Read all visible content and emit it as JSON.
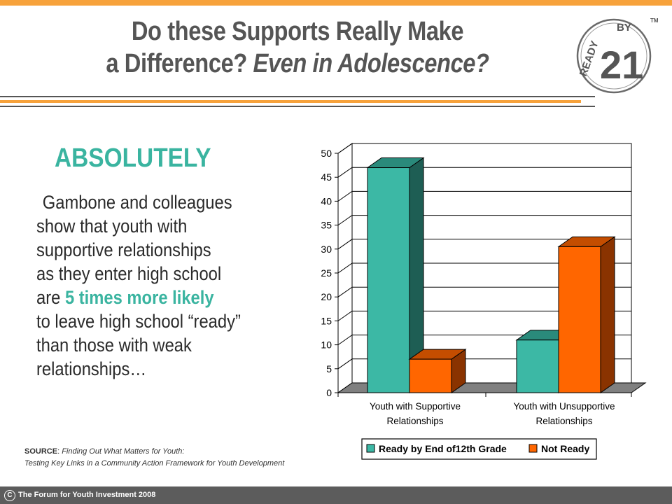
{
  "slide": {
    "title_line1": "Do these Supports Really Make",
    "title_line2_plain": "a Difference? ",
    "title_line2_italic": "Even in Adolescence?",
    "headline": "ABSOLUTELY",
    "body": {
      "line1": "Gambone and colleagues",
      "line2": "show that youth with",
      "line3": "supportive relationships",
      "line4": "as they enter high school",
      "line5_prefix": "are ",
      "line5_highlight": "5 times more likely",
      "line6": "to leave high school “ready”",
      "line7": "than those with weak",
      "line8": "relationships…"
    },
    "source": {
      "label": "SOURCE",
      "separator": ": ",
      "line1": "Finding Out What Matters for Youth:",
      "line2": "Testing Key Links in a Community Action Framework for Youth Development"
    },
    "footer": {
      "copyright_symbol": "C",
      "text": "The Forum for Youth Investment 2008"
    },
    "logo": {
      "text_ready": "READY",
      "text_by": "BY",
      "number": "21",
      "trademark": "TM"
    },
    "colors": {
      "accent_orange": "#f7a23b",
      "accent_teal": "#3ab4a0",
      "title_gray": "#555555"
    }
  },
  "chart_data": {
    "type": "bar",
    "categories": [
      [
        "Youth with Supportive",
        "Relationships"
      ],
      [
        "Youth with Unsupportive",
        "Relationships"
      ]
    ],
    "series": [
      {
        "name": "Ready by End of12th Grade",
        "values": [
          47,
          11
        ],
        "color": "#3cb8a5",
        "side_color": "#1e5e54",
        "top_color": "#2a8a7b"
      },
      {
        "name": "Not Ready",
        "values": [
          7,
          30.5
        ],
        "color": "#ff6600",
        "side_color": "#8a3300",
        "top_color": "#c44d00"
      }
    ],
    "ylim": [
      0,
      50
    ],
    "yticks": [
      0,
      5,
      10,
      15,
      20,
      25,
      30,
      35,
      40,
      45,
      50
    ],
    "grid": true,
    "legend_position": "bottom",
    "title": "",
    "xlabel": "",
    "ylabel": ""
  }
}
